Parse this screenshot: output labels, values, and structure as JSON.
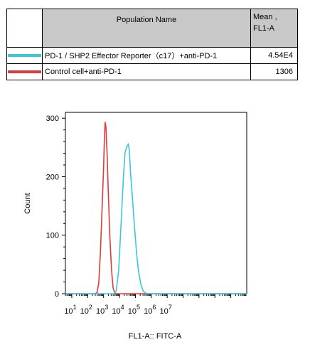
{
  "table": {
    "header": {
      "name": "Population Name",
      "mean_line1": "Mean ,",
      "mean_line2": "FL1-A"
    },
    "rows": [
      {
        "color": "#3cc6dc",
        "name": "PD-1 / SHP2 Effector Reporter（c17）+anti-PD-1",
        "mean": "4.54E4"
      },
      {
        "color": "#e23a3a",
        "name": "Control cell+anti-PD-1",
        "mean": "1306"
      }
    ]
  },
  "chart_data": {
    "type": "histogram-line",
    "xlabel": "FL1-A:: FITC-A",
    "ylabel": "Count",
    "x_scale": "log",
    "xlim": [
      0.6,
      12.0
    ],
    "ylim": [
      0,
      310
    ],
    "y_ticks": [
      0,
      100,
      200,
      300
    ],
    "x_ticks": [
      {
        "value": 1,
        "base": "10",
        "exp": "1"
      },
      {
        "value": 2,
        "base": "10",
        "exp": "2"
      },
      {
        "value": 3,
        "base": "10",
        "exp": "3"
      },
      {
        "value": 4,
        "base": "10",
        "exp": "4"
      },
      {
        "value": 5,
        "base": "10",
        "exp": "5"
      },
      {
        "value": 6,
        "base": "10",
        "exp": "6"
      },
      {
        "value": 7,
        "base": "10",
        "exp": "7"
      }
    ],
    "series": [
      {
        "name": "Control cell+anti-PD-1",
        "color": "#e23a3a",
        "points": [
          [
            2.45,
            0
          ],
          [
            2.6,
            2
          ],
          [
            2.7,
            20
          ],
          [
            2.8,
            70
          ],
          [
            2.9,
            140
          ],
          [
            3.0,
            215
          ],
          [
            3.05,
            265
          ],
          [
            3.1,
            293
          ],
          [
            3.15,
            285
          ],
          [
            3.22,
            240
          ],
          [
            3.3,
            170
          ],
          [
            3.4,
            95
          ],
          [
            3.5,
            40
          ],
          [
            3.6,
            10
          ],
          [
            3.7,
            1
          ],
          [
            3.8,
            0
          ]
        ]
      },
      {
        "name": "PD-1 / SHP2 Effector Reporter（c17）+anti-PD-1",
        "color": "#3cc6dc",
        "points": [
          [
            3.7,
            0
          ],
          [
            3.8,
            6
          ],
          [
            3.95,
            40
          ],
          [
            4.1,
            120
          ],
          [
            4.25,
            200
          ],
          [
            4.35,
            242
          ],
          [
            4.45,
            250
          ],
          [
            4.55,
            256
          ],
          [
            4.62,
            245
          ],
          [
            4.7,
            205
          ],
          [
            4.8,
            170
          ],
          [
            4.9,
            130
          ],
          [
            5.0,
            95
          ],
          [
            5.1,
            62
          ],
          [
            5.2,
            38
          ],
          [
            5.35,
            15
          ],
          [
            5.5,
            4
          ],
          [
            5.65,
            1
          ],
          [
            5.8,
            0
          ]
        ]
      }
    ]
  }
}
